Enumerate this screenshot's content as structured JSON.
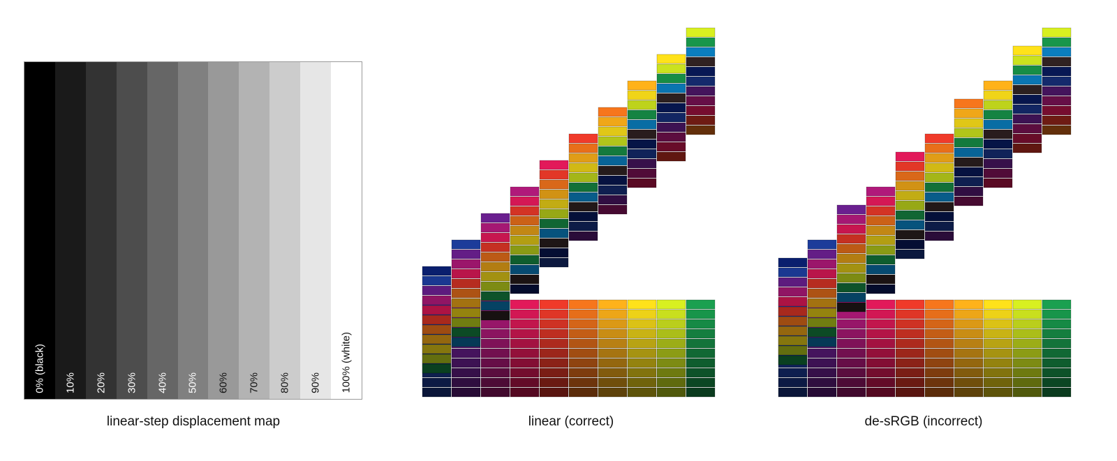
{
  "displacement_map": {
    "caption": "linear-step displacement map",
    "steps": [
      {
        "label": "0% (black)",
        "level": 0.0
      },
      {
        "label": "10%",
        "level": 0.1
      },
      {
        "label": "20%",
        "level": 0.2
      },
      {
        "label": "30%",
        "level": 0.3
      },
      {
        "label": "40%",
        "level": 0.4
      },
      {
        "label": "50%",
        "level": 0.5
      },
      {
        "label": "60%",
        "level": 0.6
      },
      {
        "label": "70%",
        "level": 0.7
      },
      {
        "label": "80%",
        "level": 0.8
      },
      {
        "label": "90%",
        "level": 0.9
      },
      {
        "label": "100% (white)",
        "level": 1.0
      }
    ]
  },
  "renders": [
    {
      "caption": "linear (correct)"
    },
    {
      "caption": "de-sRGB (incorrect)"
    }
  ],
  "colors": {
    "swatch_palette": [
      "#0a1f6e",
      "#1c3c9a",
      "#6a1f8f",
      "#b0197a",
      "#e2195a",
      "#f03a2a",
      "#f7761c",
      "#ffb21a",
      "#ffe21a",
      "#d8f020",
      "#1aa050",
      "#0c8fd8",
      "#3a2a2a"
    ]
  }
}
